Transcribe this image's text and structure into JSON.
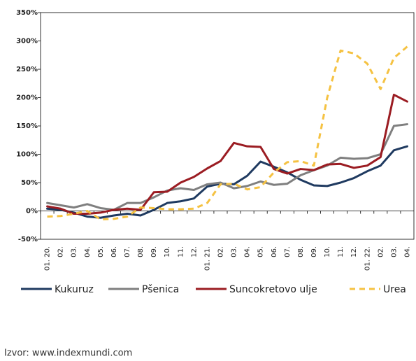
{
  "chart_data": {
    "type": "line",
    "categories": [
      "01. 20.",
      "02.",
      "03.",
      "04.",
      "05.",
      "06.",
      "07.",
      "08.",
      "09.",
      "10.",
      "11.",
      "12.",
      "01. 21.",
      "02.",
      "03.",
      "04.",
      "05.",
      "06.",
      "07.",
      "08.",
      "09.",
      "10.",
      "11.",
      "12.",
      "01. 22.",
      "02.",
      "03.",
      "04."
    ],
    "series": [
      {
        "name": "Kukuruz",
        "color": "#1f3a60",
        "dashed": false,
        "values": [
          4,
          2,
          -3,
          -10,
          -12,
          -8,
          -5,
          -8,
          2,
          14,
          17,
          22,
          43,
          48,
          47,
          62,
          87,
          78,
          68,
          55,
          45,
          44,
          50,
          58,
          70,
          80,
          107,
          114
        ]
      },
      {
        "name": "Pšenica",
        "color": "#7f7f7f",
        "dashed": false,
        "values": [
          14,
          10,
          6,
          12,
          5,
          2,
          14,
          14,
          24,
          36,
          40,
          37,
          47,
          50,
          40,
          44,
          52,
          46,
          48,
          63,
          72,
          80,
          94,
          92,
          93,
          100,
          150,
          153
        ]
      },
      {
        "name": "Suncokretovo ulje",
        "color": "#9b1c22",
        "dashed": false,
        "values": [
          8,
          4,
          -5,
          -5,
          -3,
          2,
          4,
          2,
          33,
          34,
          50,
          60,
          75,
          88,
          120,
          114,
          113,
          74,
          66,
          74,
          72,
          82,
          83,
          76,
          80,
          95,
          205,
          193
        ]
      },
      {
        "name": "Urea",
        "color": "#f5c242",
        "dashed": true,
        "values": [
          -10,
          -9,
          -5,
          0,
          -15,
          -14,
          -10,
          6,
          5,
          3,
          3,
          4,
          14,
          47,
          48,
          38,
          42,
          68,
          86,
          88,
          80,
          200,
          283,
          278,
          260,
          215,
          270,
          290
        ]
      }
    ],
    "ylim": [
      -50,
      350
    ],
    "yticks": [
      {
        "value": -50,
        "label": "-50%"
      },
      {
        "value": 0,
        "label": "0%"
      },
      {
        "value": 50,
        "label": "50%"
      },
      {
        "value": 100,
        "label": "100%"
      },
      {
        "value": 150,
        "label": "150%"
      },
      {
        "value": 200,
        "label": "200%"
      },
      {
        "value": 250,
        "label": "250%"
      },
      {
        "value": 300,
        "label": "300%"
      },
      {
        "value": 350,
        "label": "350%"
      }
    ],
    "grid": false,
    "legend": "bottom",
    "source": "Izvor: www.indexmundi.com"
  }
}
